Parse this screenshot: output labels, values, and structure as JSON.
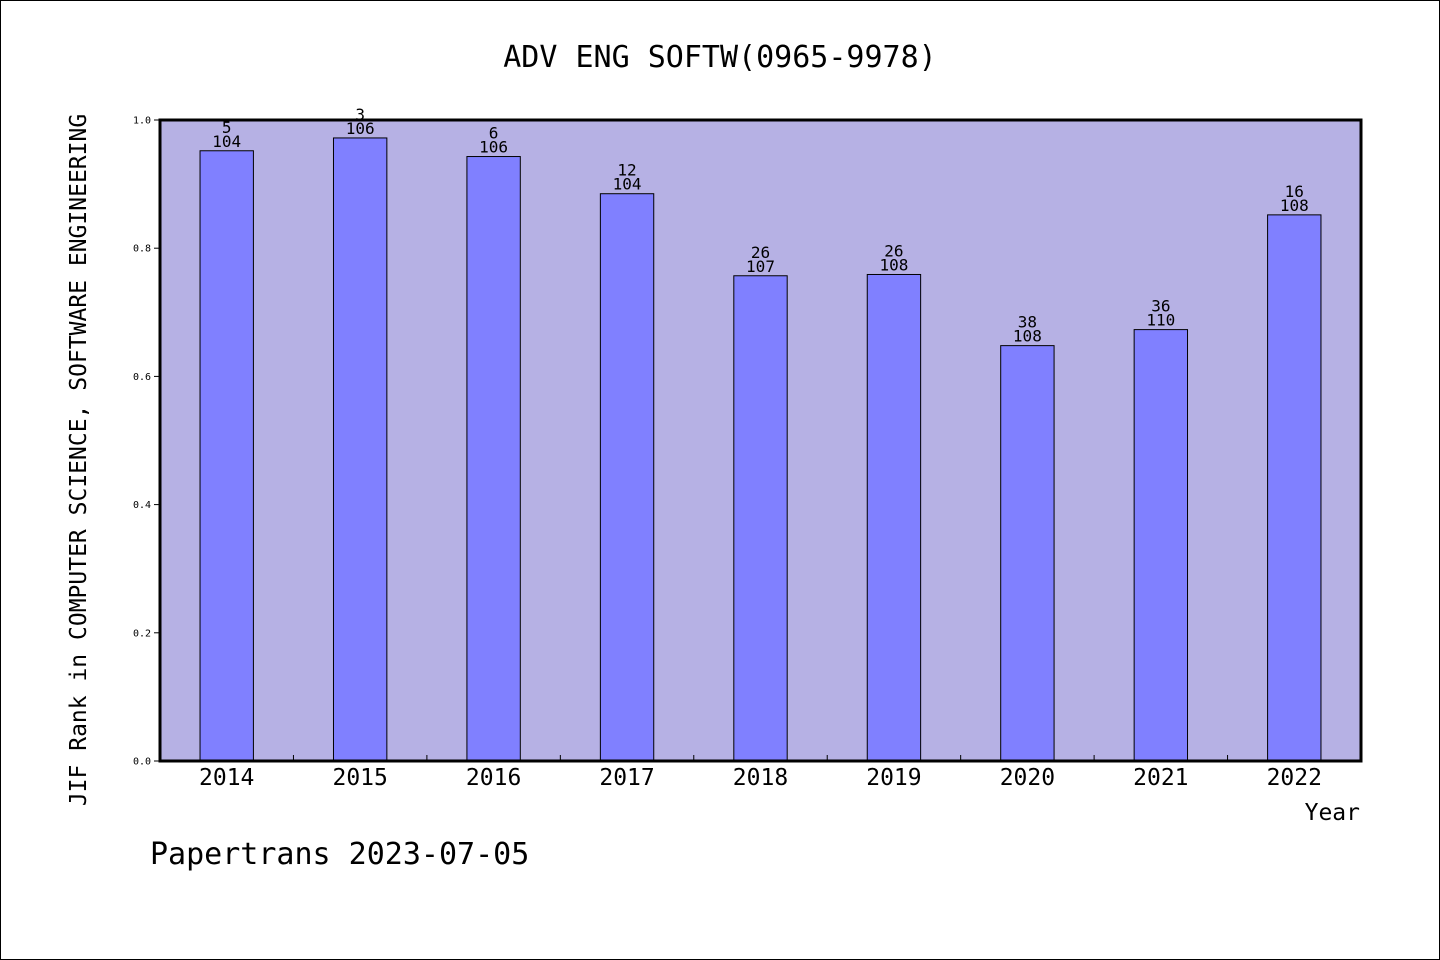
{
  "chart_data": {
    "type": "bar",
    "title": "ADV ENG SOFTW(0965-9978)",
    "xlabel": "Year",
    "ylabel": "JIF Rank in COMPUTER SCIENCE, SOFTWARE ENGINEERING",
    "footer": "Papertrans 2023-07-05",
    "categories": [
      "2014",
      "2015",
      "2016",
      "2017",
      "2018",
      "2019",
      "2020",
      "2021",
      "2022"
    ],
    "values": [
      0.952,
      0.972,
      0.943,
      0.885,
      0.757,
      0.759,
      0.648,
      0.673,
      0.852
    ],
    "ranks": [
      "5",
      "3",
      "6",
      "12",
      "26",
      "26",
      "38",
      "36",
      "16"
    ],
    "totals": [
      "104",
      "106",
      "106",
      "104",
      "107",
      "108",
      "108",
      "110",
      "108"
    ],
    "yticks": [
      "0.0",
      "0.2",
      "0.4",
      "0.6",
      "0.8",
      "1.0"
    ],
    "ylim": [
      0,
      1
    ],
    "grid": false,
    "colors": {
      "plot_background": "#b6b1e4",
      "bar_fill": "#8080ff",
      "bar_stroke": "#000000"
    }
  }
}
